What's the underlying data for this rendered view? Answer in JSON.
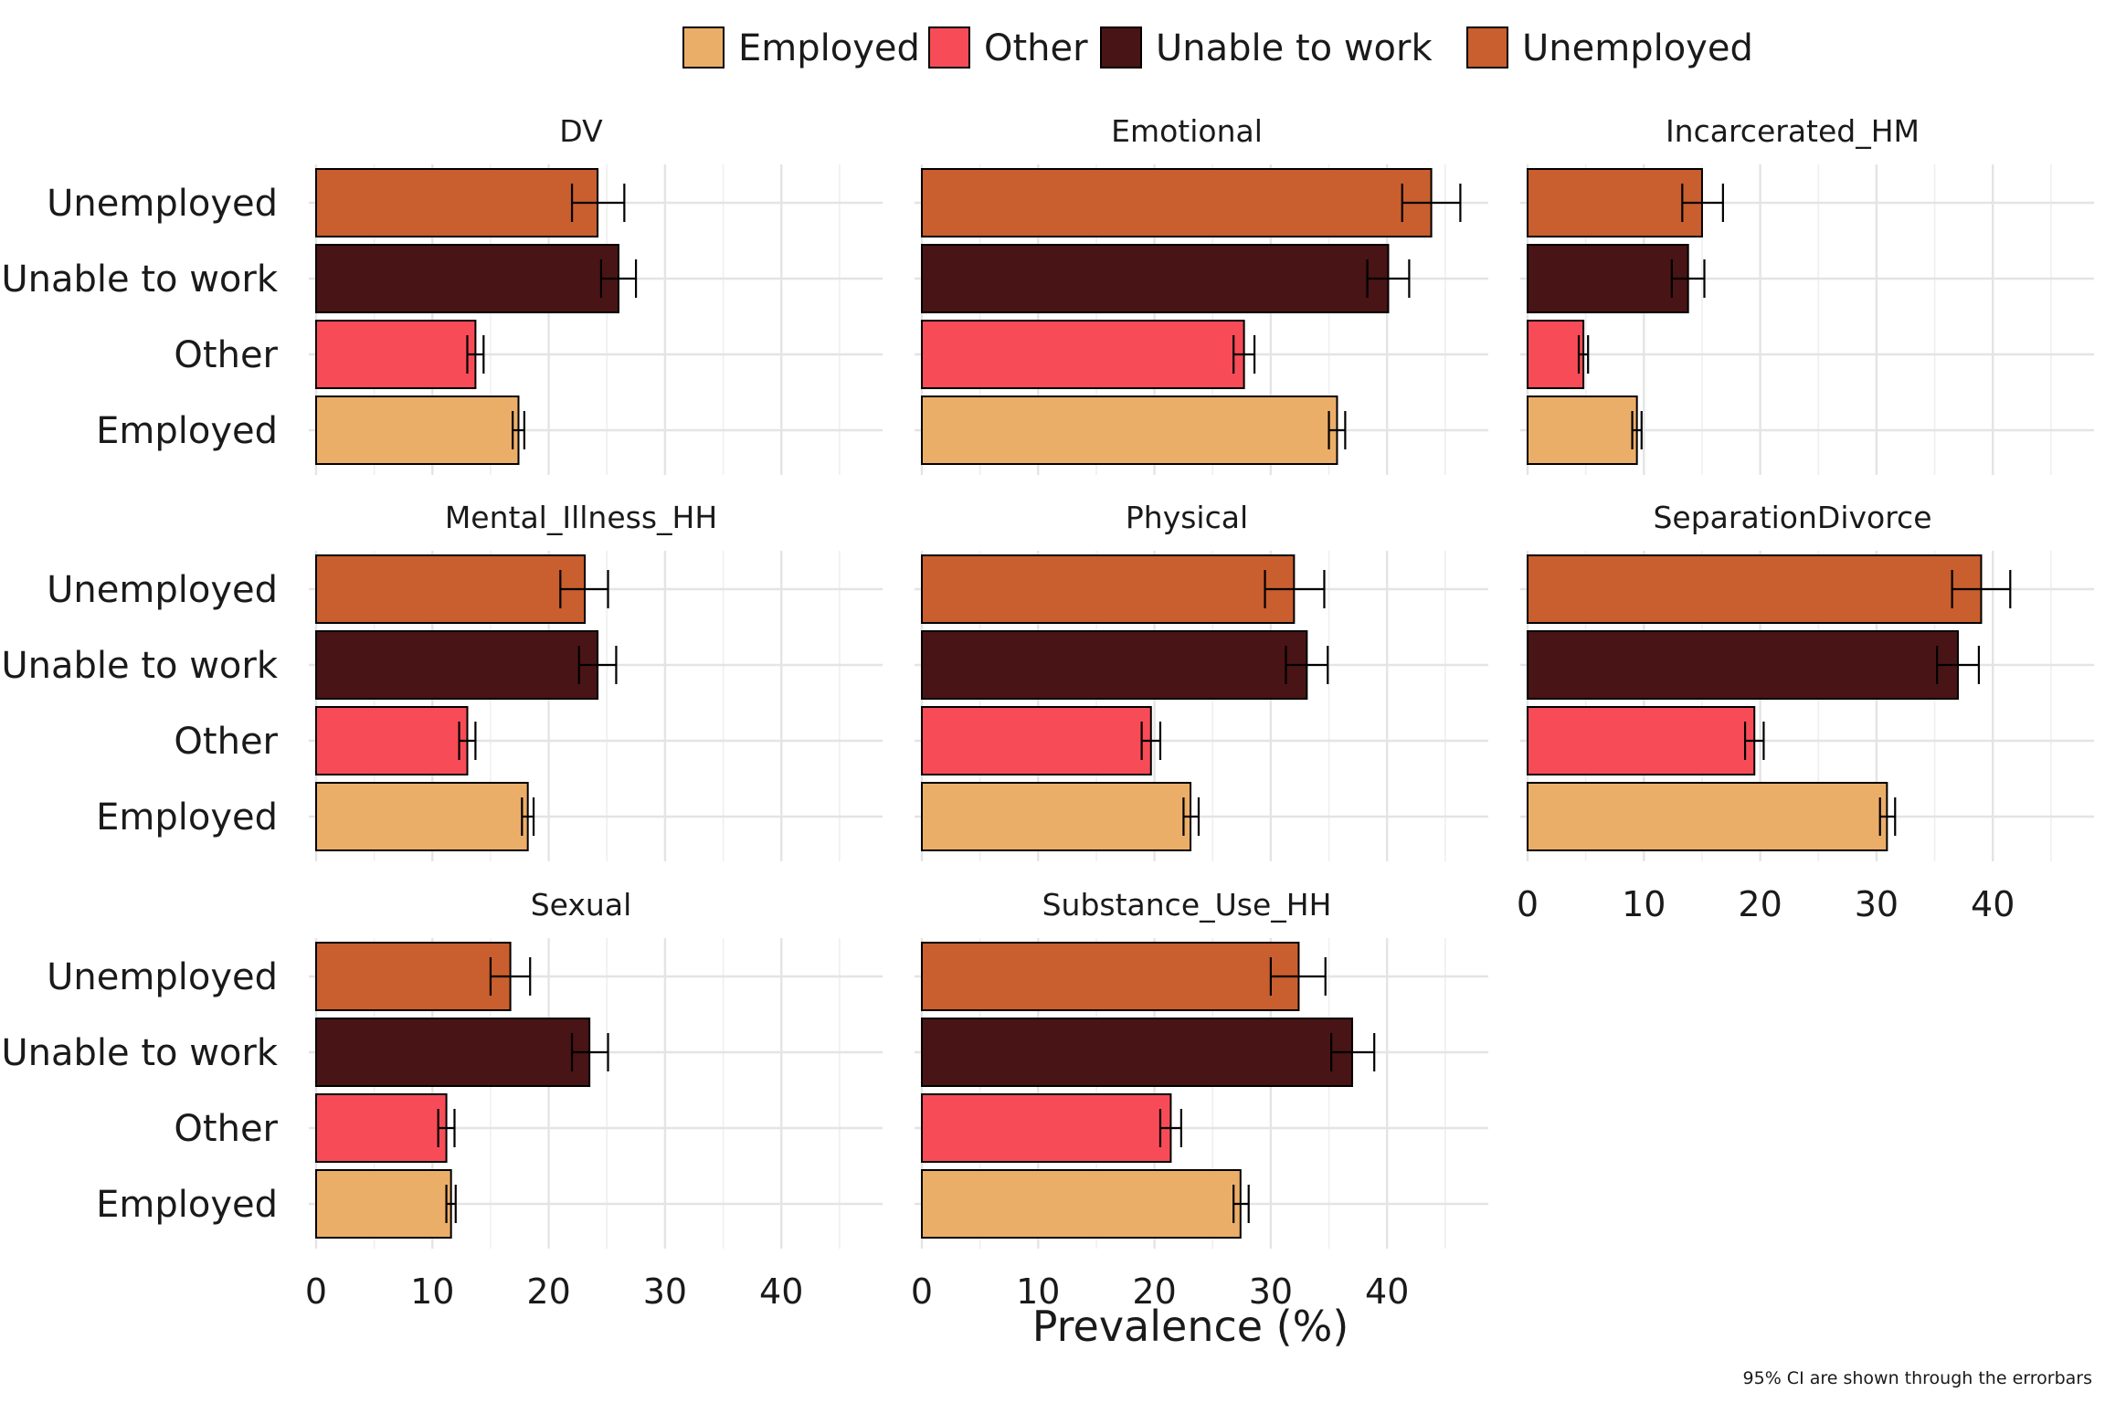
{
  "chart_data": {
    "type": "bar",
    "orientation": "horizontal",
    "layout": "facet-wrap 3 columns, shared x axis per column",
    "xlabel": "Prevalence (%)",
    "xlim": [
      0,
      47
    ],
    "xticks": [
      0,
      10,
      20,
      30,
      40
    ],
    "categories": [
      "Unemployed",
      "Unable to work",
      "Other",
      "Employed"
    ],
    "legend": {
      "position": "top",
      "entries": [
        {
          "name": "Employed",
          "color": "#EBAE69"
        },
        {
          "name": "Other",
          "color": "#F74C57"
        },
        {
          "name": "Unable to work",
          "color": "#491415"
        },
        {
          "name": "Unemployed",
          "color": "#C95E2E"
        }
      ]
    },
    "caption": "95% CI are shown through the errorbars",
    "grid": true,
    "panels": [
      {
        "title": "DV",
        "values": {
          "Unemployed": {
            "value": 24.2,
            "ci": [
              22.0,
              26.5
            ]
          },
          "Unable to work": {
            "value": 26.0,
            "ci": [
              24.5,
              27.5
            ]
          },
          "Other": {
            "value": 13.7,
            "ci": [
              13.0,
              14.4
            ]
          },
          "Employed": {
            "value": 17.4,
            "ci": [
              16.9,
              17.9
            ]
          }
        }
      },
      {
        "title": "Emotional",
        "values": {
          "Unemployed": {
            "value": 43.8,
            "ci": [
              41.3,
              46.3
            ]
          },
          "Unable to work": {
            "value": 40.1,
            "ci": [
              38.3,
              41.9
            ]
          },
          "Other": {
            "value": 27.7,
            "ci": [
              26.8,
              28.6
            ]
          },
          "Employed": {
            "value": 35.7,
            "ci": [
              35.0,
              36.4
            ]
          }
        }
      },
      {
        "title": "Incarcerated_HM",
        "values": {
          "Unemployed": {
            "value": 15.0,
            "ci": [
              13.3,
              16.8
            ]
          },
          "Unable to work": {
            "value": 13.8,
            "ci": [
              12.4,
              15.2
            ]
          },
          "Other": {
            "value": 4.8,
            "ci": [
              4.4,
              5.2
            ]
          },
          "Employed": {
            "value": 9.4,
            "ci": [
              9.0,
              9.8
            ]
          }
        }
      },
      {
        "title": "Mental_Illness_HH",
        "values": {
          "Unemployed": {
            "value": 23.1,
            "ci": [
              21.0,
              25.1
            ]
          },
          "Unable to work": {
            "value": 24.2,
            "ci": [
              22.6,
              25.8
            ]
          },
          "Other": {
            "value": 13.0,
            "ci": [
              12.3,
              13.7
            ]
          },
          "Employed": {
            "value": 18.2,
            "ci": [
              17.7,
              18.7
            ]
          }
        }
      },
      {
        "title": "Physical",
        "values": {
          "Unemployed": {
            "value": 32.0,
            "ci": [
              29.5,
              34.6
            ]
          },
          "Unable to work": {
            "value": 33.1,
            "ci": [
              31.3,
              34.9
            ]
          },
          "Other": {
            "value": 19.7,
            "ci": [
              18.9,
              20.5
            ]
          },
          "Employed": {
            "value": 23.1,
            "ci": [
              22.5,
              23.8
            ]
          }
        }
      },
      {
        "title": "SeparationDivorce",
        "values": {
          "Unemployed": {
            "value": 39.0,
            "ci": [
              36.5,
              41.5
            ]
          },
          "Unable to work": {
            "value": 37.0,
            "ci": [
              35.2,
              38.8
            ]
          },
          "Other": {
            "value": 19.5,
            "ci": [
              18.7,
              20.3
            ]
          },
          "Employed": {
            "value": 30.9,
            "ci": [
              30.3,
              31.6
            ]
          }
        }
      },
      {
        "title": "Sexual",
        "values": {
          "Unemployed": {
            "value": 16.7,
            "ci": [
              15.0,
              18.4
            ]
          },
          "Unable to work": {
            "value": 23.5,
            "ci": [
              22.0,
              25.1
            ]
          },
          "Other": {
            "value": 11.2,
            "ci": [
              10.5,
              11.9
            ]
          },
          "Employed": {
            "value": 11.6,
            "ci": [
              11.2,
              12.0
            ]
          }
        }
      },
      {
        "title": "Substance_Use_HH",
        "values": {
          "Unemployed": {
            "value": 32.4,
            "ci": [
              30.0,
              34.7
            ]
          },
          "Unable to work": {
            "value": 37.0,
            "ci": [
              35.2,
              38.9
            ]
          },
          "Other": {
            "value": 21.4,
            "ci": [
              20.5,
              22.3
            ]
          },
          "Employed": {
            "value": 27.4,
            "ci": [
              26.8,
              28.1
            ]
          }
        }
      }
    ]
  }
}
